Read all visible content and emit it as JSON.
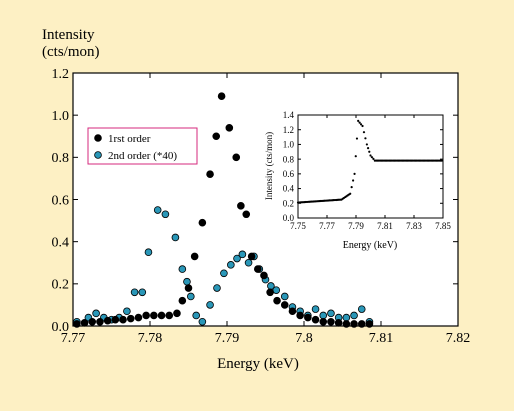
{
  "chart_data": [
    {
      "type": "scatter",
      "xlabel": "Energy (keV)",
      "ylabel_line1": "Intensity",
      "ylabel_line2": "(cts/mon)",
      "xlim": [
        7.77,
        7.82
      ],
      "ylim": [
        0.0,
        1.2
      ],
      "x_ticks": [
        "7.77",
        "7.78",
        "7.79",
        "7.8",
        "7.81",
        "7.82"
      ],
      "y_ticks": [
        "0.0",
        "0.2",
        "0.4",
        "0.6",
        "0.8",
        "1.0",
        "1.2"
      ],
      "legend_position": "upper-left",
      "series": [
        {
          "name": "1rst order",
          "color": "#000000",
          "points": [
            [
              7.7705,
              0.01
            ],
            [
              7.7715,
              0.015
            ],
            [
              7.7725,
              0.02
            ],
            [
              7.7735,
              0.02
            ],
            [
              7.7745,
              0.025
            ],
            [
              7.7755,
              0.03
            ],
            [
              7.7765,
              0.03
            ],
            [
              7.7775,
              0.035
            ],
            [
              7.7785,
              0.04
            ],
            [
              7.7795,
              0.05
            ],
            [
              7.7805,
              0.05
            ],
            [
              7.7815,
              0.05
            ],
            [
              7.7825,
              0.05
            ],
            [
              7.7835,
              0.06
            ],
            [
              7.7842,
              0.12
            ],
            [
              7.785,
              0.18
            ],
            [
              7.7858,
              0.33
            ],
            [
              7.7868,
              0.49
            ],
            [
              7.7878,
              0.72
            ],
            [
              7.7886,
              0.9
            ],
            [
              7.7893,
              1.09
            ],
            [
              7.7903,
              0.94
            ],
            [
              7.7912,
              0.8
            ],
            [
              7.7918,
              0.57
            ],
            [
              7.7925,
              0.53
            ],
            [
              7.7932,
              0.33
            ],
            [
              7.794,
              0.27
            ],
            [
              7.7948,
              0.24
            ],
            [
              7.7956,
              0.16
            ],
            [
              7.7965,
              0.12
            ],
            [
              7.7975,
              0.1
            ],
            [
              7.7985,
              0.07
            ],
            [
              7.7995,
              0.05
            ],
            [
              7.8005,
              0.04
            ],
            [
              7.8015,
              0.03
            ],
            [
              7.8025,
              0.02
            ],
            [
              7.8035,
              0.02
            ],
            [
              7.8045,
              0.015
            ],
            [
              7.8055,
              0.01
            ],
            [
              7.8065,
              0.01
            ],
            [
              7.8075,
              0.01
            ],
            [
              7.8085,
              0.01
            ]
          ]
        },
        {
          "name": "2nd order (*40)",
          "color": "#2a97b8",
          "points": [
            [
              7.7705,
              0.02
            ],
            [
              7.772,
              0.04
            ],
            [
              7.773,
              0.06
            ],
            [
              7.774,
              0.04
            ],
            [
              7.775,
              0.03
            ],
            [
              7.776,
              0.04
            ],
            [
              7.777,
              0.07
            ],
            [
              7.778,
              0.16
            ],
            [
              7.779,
              0.16
            ],
            [
              7.7798,
              0.35
            ],
            [
              7.781,
              0.55
            ],
            [
              7.782,
              0.53
            ],
            [
              7.7833,
              0.42
            ],
            [
              7.7842,
              0.27
            ],
            [
              7.7848,
              0.21
            ],
            [
              7.7853,
              0.14
            ],
            [
              7.786,
              0.05
            ],
            [
              7.7868,
              0.02
            ],
            [
              7.7878,
              0.1
            ],
            [
              7.7887,
              0.18
            ],
            [
              7.7896,
              0.25
            ],
            [
              7.7905,
              0.29
            ],
            [
              7.7913,
              0.32
            ],
            [
              7.792,
              0.34
            ],
            [
              7.7928,
              0.3
            ],
            [
              7.7935,
              0.33
            ],
            [
              7.7942,
              0.27
            ],
            [
              7.795,
              0.22
            ],
            [
              7.7957,
              0.19
            ],
            [
              7.7964,
              0.17
            ],
            [
              7.7975,
              0.14
            ],
            [
              7.7985,
              0.09
            ],
            [
              7.7995,
              0.07
            ],
            [
              7.8005,
              0.05
            ],
            [
              7.8015,
              0.08
            ],
            [
              7.8025,
              0.05
            ],
            [
              7.8035,
              0.06
            ],
            [
              7.8045,
              0.04
            ],
            [
              7.8055,
              0.04
            ],
            [
              7.8065,
              0.05
            ],
            [
              7.8075,
              0.08
            ],
            [
              7.8085,
              0.02
            ]
          ]
        }
      ]
    },
    {
      "type": "scatter",
      "xlabel": "Energy (keV)",
      "ylabel": "Intensity (cts/mon)",
      "xlim": [
        7.75,
        7.85
      ],
      "ylim": [
        0.0,
        1.4
      ],
      "x_ticks": [
        "7.75",
        "7.77",
        "7.79",
        "7.81",
        "7.83",
        "7.85"
      ],
      "y_ticks": [
        "0.0",
        "0.2",
        "0.4",
        "0.6",
        "0.8",
        "1.0",
        "1.2",
        "1.4"
      ],
      "series": [
        {
          "color": "#000000",
          "segments": [
            {
              "x_from": 7.75,
              "x_to": 7.78,
              "y_from": 0.21,
              "y_to": 0.25
            },
            {
              "x_from": 7.78,
              "x_to": 7.786,
              "y_from": 0.25,
              "y_to": 0.33
            },
            {
              "x_from": 7.786,
              "x_to": 7.789,
              "y_from": 0.33,
              "y_to": 0.6
            },
            {
              "x_from": 7.789,
              "x_to": 7.7915,
              "y_from": 0.6,
              "y_to": 1.32
            },
            {
              "x_from": 7.7915,
              "x_to": 7.7945,
              "y_from": 1.32,
              "y_to": 1.25
            },
            {
              "x_from": 7.7945,
              "x_to": 7.7975,
              "y_from": 1.25,
              "y_to": 1.0
            },
            {
              "x_from": 7.7975,
              "x_to": 7.8,
              "y_from": 1.0,
              "y_to": 0.85
            },
            {
              "x_from": 7.8,
              "x_to": 7.803,
              "y_from": 0.85,
              "y_to": 0.78
            },
            {
              "x_from": 7.803,
              "x_to": 7.85,
              "y_from": 0.78,
              "y_to": 0.78
            }
          ]
        }
      ]
    }
  ]
}
